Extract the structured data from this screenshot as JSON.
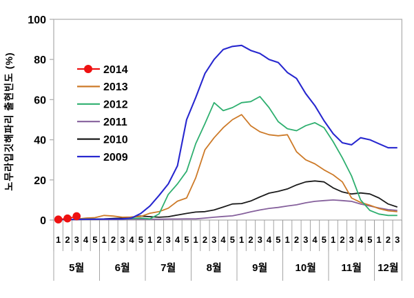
{
  "chart_data": {
    "type": "line",
    "title": "",
    "ylabel": "노무라입깃해파리 출현빈도 (%)",
    "xlabel": "",
    "ylim": [
      0,
      100
    ],
    "yticks": [
      0,
      20,
      40,
      60,
      80,
      100
    ],
    "grid": false,
    "legend_position": "inside-top-left",
    "months": [
      {
        "label": "5월",
        "weeks": 5
      },
      {
        "label": "6월",
        "weeks": 5
      },
      {
        "label": "7월",
        "weeks": 5
      },
      {
        "label": "8월",
        "weeks": 5
      },
      {
        "label": "9월",
        "weeks": 5
      },
      {
        "label": "10월",
        "weeks": 5
      },
      {
        "label": "11월",
        "weeks": 5
      },
      {
        "label": "12월",
        "weeks": 3
      }
    ],
    "week_labels": [
      "1",
      "2",
      "3",
      "4",
      "5",
      "1",
      "2",
      "3",
      "4",
      "5",
      "1",
      "2",
      "3",
      "4",
      "5",
      "1",
      "2",
      "3",
      "4",
      "5",
      "1",
      "2",
      "3",
      "4",
      "5",
      "1",
      "2",
      "3",
      "4",
      "5",
      "1",
      "2",
      "3",
      "4",
      "5",
      "1",
      "2",
      "3"
    ],
    "series": [
      {
        "name": "2014",
        "color": "#ee1111",
        "marker": "circle",
        "values": [
          0.3,
          0.8,
          1.9,
          null,
          null,
          null,
          null,
          null,
          null,
          null,
          null,
          null,
          null,
          null,
          null,
          null,
          null,
          null,
          null,
          null,
          null,
          null,
          null,
          null,
          null,
          null,
          null,
          null,
          null,
          null,
          null,
          null,
          null,
          null,
          null,
          null,
          null,
          null
        ]
      },
      {
        "name": "2013",
        "color": "#cd7a28",
        "marker": "none",
        "values": [
          0.3,
          0.4,
          0.5,
          1.0,
          1.2,
          2.3,
          2.0,
          1.4,
          1.5,
          1.8,
          3.4,
          4.2,
          5.9,
          9.4,
          11.0,
          21,
          35,
          41,
          46,
          50,
          52.5,
          47,
          44,
          42.5,
          42,
          42.5,
          34,
          30,
          28,
          25,
          22.5,
          19,
          11,
          8.8,
          7.4,
          5.7,
          4.6,
          4.2
        ]
      },
      {
        "name": "2012",
        "color": "#2eaf6f",
        "marker": "none",
        "values": [
          0.3,
          0.3,
          0.4,
          0.5,
          0.5,
          0.5,
          0.5,
          0.5,
          0.8,
          1.0,
          0.6,
          3.1,
          12.8,
          18,
          24.3,
          38,
          48,
          58.5,
          54.5,
          56,
          58.5,
          59,
          61.5,
          56,
          49,
          45.5,
          44.5,
          47,
          48.5,
          46,
          39,
          31,
          22,
          10,
          4.8,
          3.0,
          2.3,
          2.3
        ]
      },
      {
        "name": "2011",
        "color": "#85609c",
        "marker": "none",
        "values": [
          0.2,
          0.2,
          0.2,
          0.3,
          0.3,
          0.3,
          0.3,
          0.3,
          0.4,
          0.4,
          0.4,
          0.4,
          0.5,
          0.5,
          0.6,
          0.6,
          1.0,
          1.4,
          1.8,
          2.1,
          3.0,
          4.1,
          5.0,
          5.8,
          6.3,
          7.0,
          7.6,
          8.6,
          9.3,
          9.7,
          10,
          9.7,
          9.3,
          8.0,
          7.0,
          6.0,
          5.2,
          4.8
        ]
      },
      {
        "name": "2010",
        "color": "#1a1a1a",
        "marker": "none",
        "values": [
          0.3,
          0.3,
          0.4,
          0.5,
          0.5,
          0.6,
          0.8,
          1.0,
          1.5,
          2.0,
          1.7,
          1.4,
          1.7,
          2.5,
          3.3,
          4.0,
          4.2,
          5.0,
          6.5,
          8.0,
          8.2,
          9.5,
          11.5,
          13.4,
          14.3,
          15.5,
          17.5,
          19,
          19.5,
          19,
          16,
          14,
          13,
          13.5,
          13,
          11,
          8,
          6.5
        ]
      },
      {
        "name": "2009",
        "color": "#2727cf",
        "marker": "none",
        "values": [
          0.3,
          0.3,
          0.3,
          0.4,
          0.4,
          0.5,
          0.5,
          0.6,
          1.0,
          3.3,
          7,
          12.3,
          18,
          27,
          50,
          61,
          73,
          80,
          85,
          86.5,
          87,
          84.5,
          83,
          80,
          78.5,
          73.5,
          70.5,
          63,
          57,
          49.5,
          43,
          38.5,
          37.5,
          41,
          40,
          38,
          36,
          36
        ]
      }
    ]
  }
}
